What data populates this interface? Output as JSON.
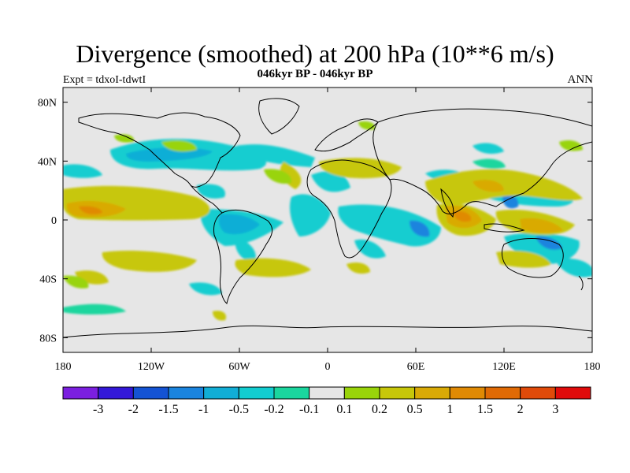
{
  "title": "Divergence (smoothed) at 200 hPa (10**6 m/s)",
  "subtitle": "046kyr BP - 046kyr BP",
  "experiment": "Expt = tdxoI-tdwtI",
  "season": "ANN",
  "chart_data": {
    "type": "filled-contour map",
    "projection": "cylindrical equidistant",
    "lon_range": [
      -180,
      180
    ],
    "lat_range": [
      -90,
      90
    ],
    "x_ticks": [
      "180",
      "120W",
      "60W",
      "0",
      "60E",
      "120E",
      "180"
    ],
    "y_ticks": [
      "80N",
      "40N",
      "0",
      "40S",
      "80S"
    ],
    "colorbar": {
      "levels": [
        "-3",
        "-2",
        "-1.5",
        "-1",
        "-0.5",
        "-0.2",
        "-0.1",
        "0.1",
        "0.2",
        "0.5",
        "1",
        "1.5",
        "2",
        "3"
      ],
      "colors": [
        "#7b1fe0",
        "#3318d8",
        "#1453d4",
        "#1a84de",
        "#11aed6",
        "#12cdd0",
        "#1ad69e",
        "#e6e6e6",
        "#99d40a",
        "#c7c70a",
        "#d9aa06",
        "#e08a04",
        "#e06a05",
        "#e04a0a",
        "#e00b0b"
      ]
    },
    "note": "Sign of smoothed 200 hPa divergence difference: positive (yellow/orange) along ITCZ, Indian Ocean and Maritime Continent; negative (cyan/blue) over subtropics, Brazil, tropical Atlantic, central-east Africa and western tropical Pacific."
  }
}
